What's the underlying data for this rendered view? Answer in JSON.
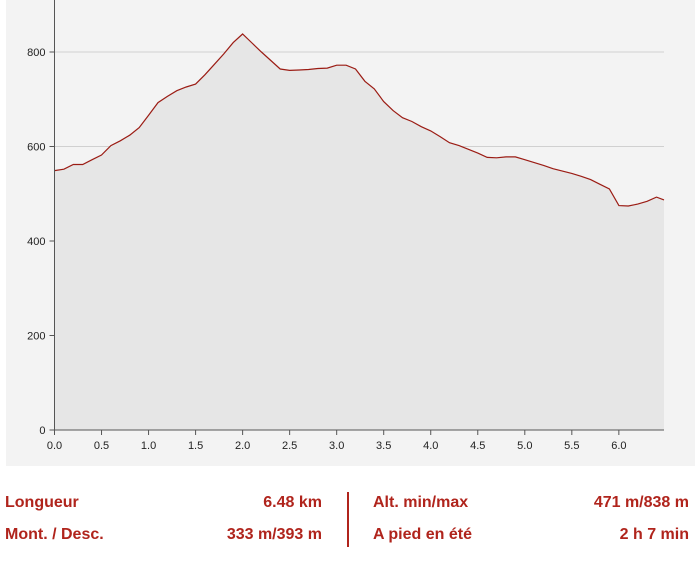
{
  "chart_data": {
    "type": "area",
    "title": "",
    "xlabel": "",
    "ylabel": "",
    "xlim": [
      0,
      6.48
    ],
    "ylim": [
      0,
      900
    ],
    "x_ticks": [
      "0.0",
      "0.5",
      "1.0",
      "1.5",
      "2.0",
      "2.5",
      "3.0",
      "3.5",
      "4.0",
      "4.5",
      "5.0",
      "5.5",
      "6.0"
    ],
    "x_tick_values": [
      0,
      0.5,
      1.0,
      1.5,
      2.0,
      2.5,
      3.0,
      3.5,
      4.0,
      4.5,
      5.0,
      5.5,
      6.0
    ],
    "y_ticks": [
      "0",
      "200",
      "400",
      "600",
      "800"
    ],
    "y_tick_values": [
      0,
      200,
      400,
      600,
      800
    ],
    "grid": "horizontal",
    "colors": {
      "line": "#9b1c14",
      "fill": "#e6e6e6",
      "grid": "#d0d0d0",
      "axis": "#555555",
      "text_accent": "#b0241c"
    },
    "x": [
      0.0,
      0.1,
      0.2,
      0.3,
      0.4,
      0.5,
      0.6,
      0.7,
      0.8,
      0.9,
      1.0,
      1.1,
      1.2,
      1.3,
      1.4,
      1.5,
      1.6,
      1.7,
      1.8,
      1.9,
      2.0,
      2.1,
      2.2,
      2.3,
      2.4,
      2.5,
      2.6,
      2.7,
      2.8,
      2.9,
      3.0,
      3.1,
      3.2,
      3.3,
      3.4,
      3.5,
      3.6,
      3.7,
      3.8,
      3.9,
      4.0,
      4.1,
      4.2,
      4.3,
      4.4,
      4.5,
      4.6,
      4.7,
      4.8,
      4.9,
      5.0,
      5.1,
      5.2,
      5.3,
      5.4,
      5.5,
      5.6,
      5.7,
      5.8,
      5.9,
      6.0,
      6.1,
      6.2,
      6.3,
      6.4,
      6.48
    ],
    "y": [
      549,
      552,
      562,
      562,
      572,
      582,
      602,
      612,
      624,
      640,
      666,
      693,
      706,
      718,
      726,
      732,
      752,
      774,
      796,
      820,
      838,
      819,
      800,
      782,
      764,
      761,
      762,
      763,
      765,
      766,
      772,
      772,
      764,
      738,
      722,
      695,
      676,
      661,
      653,
      642,
      633,
      621,
      608,
      602,
      594,
      586,
      577,
      576,
      578,
      578,
      572,
      566,
      560,
      553,
      548,
      543,
      537,
      530,
      520,
      510,
      475,
      474,
      478,
      484,
      493,
      487
    ]
  },
  "stats": {
    "length_label": "Longueur",
    "length_value": "6.48 km",
    "alt_label": "Alt. min/max",
    "alt_value": "471 m/838 m",
    "climb_label": "Mont. / Desc.",
    "climb_value": "333 m/393 m",
    "walk_label": "A pied en été",
    "walk_value": "2 h 7 min"
  }
}
